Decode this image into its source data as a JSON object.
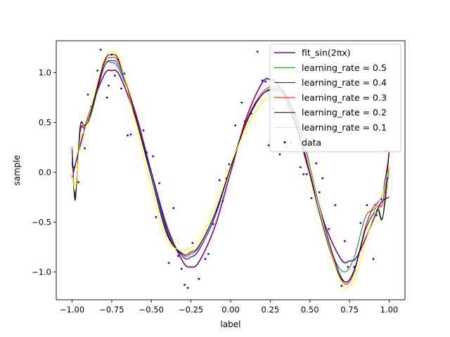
{
  "chart_data": {
    "type": "line",
    "title": "",
    "xlabel": "label",
    "ylabel": "sample",
    "xlim": [
      -1.1,
      1.1
    ],
    "ylim": [
      -1.28,
      1.32
    ],
    "xticks": [
      -1.0,
      -0.75,
      -0.5,
      -0.25,
      0.0,
      0.25,
      0.5,
      0.75,
      1.0
    ],
    "xtick_labels": [
      "−1.00",
      "−0.75",
      "−0.50",
      "−0.25",
      "0.00",
      "0.25",
      "0.50",
      "0.75",
      "1.00"
    ],
    "yticks": [
      -1.0,
      -0.5,
      0.0,
      0.5,
      1.0
    ],
    "ytick_labels": [
      "−1.0",
      "−0.5",
      "0.0",
      "0.5",
      "1.0"
    ],
    "grid": false,
    "legend_position": "top-right",
    "series": [
      {
        "name": "fit_sin(2πx)",
        "color": "#800080",
        "width": 1.6,
        "x": [
          -1.0,
          -0.9,
          -0.8,
          -0.75,
          -0.7,
          -0.6,
          -0.5,
          -0.4,
          -0.3,
          -0.25,
          -0.2,
          -0.1,
          0.0,
          0.1,
          0.2,
          0.25,
          0.3,
          0.4,
          0.5,
          0.6,
          0.7,
          0.75,
          0.8,
          0.9,
          0.95,
          1.0
        ],
        "y": [
          -0.05,
          0.55,
          0.97,
          1.02,
          0.97,
          0.55,
          0.0,
          -0.55,
          -0.9,
          -0.95,
          -0.9,
          -0.55,
          0.0,
          0.55,
          0.9,
          0.93,
          0.88,
          0.52,
          -0.02,
          -0.55,
          -0.88,
          -0.89,
          -0.84,
          -0.48,
          -0.3,
          -0.25
        ]
      },
      {
        "name": "learning_rate = 0.5",
        "color": "#008000",
        "width": 1.0,
        "x": [
          -1.0,
          -0.98,
          -0.95,
          -0.92,
          -0.88,
          -0.8,
          -0.75,
          -0.7,
          -0.6,
          -0.5,
          -0.4,
          -0.3,
          -0.25,
          -0.2,
          -0.1,
          0.0,
          0.1,
          0.2,
          0.28,
          0.35,
          0.45,
          0.55,
          0.65,
          0.72,
          0.78,
          0.85,
          0.9,
          0.93,
          0.96,
          1.0
        ],
        "y": [
          0.15,
          -0.22,
          0.4,
          0.45,
          0.58,
          1.05,
          1.1,
          1.02,
          0.6,
          0.0,
          -0.58,
          -0.85,
          -0.85,
          -0.78,
          -0.45,
          0.05,
          0.5,
          0.78,
          0.82,
          0.75,
          0.35,
          -0.3,
          -0.85,
          -1.0,
          -0.85,
          -0.45,
          -0.38,
          -0.35,
          -0.45,
          0.05
        ]
      },
      {
        "name": "learning_rate = 0.4",
        "color": "#0000ff",
        "width": 1.0,
        "x": [
          -1.0,
          -0.98,
          -0.95,
          -0.92,
          -0.88,
          -0.8,
          -0.75,
          -0.7,
          -0.6,
          -0.5,
          -0.4,
          -0.3,
          -0.25,
          -0.2,
          -0.1,
          0.0,
          0.1,
          0.2,
          0.28,
          0.35,
          0.45,
          0.55,
          0.65,
          0.72,
          0.78,
          0.85,
          0.9,
          0.93,
          0.96,
          1.0
        ],
        "y": [
          0.1,
          -0.25,
          0.4,
          0.45,
          0.6,
          1.05,
          1.12,
          1.05,
          0.6,
          0.0,
          -0.6,
          -0.85,
          -0.85,
          -0.78,
          -0.45,
          0.05,
          0.52,
          0.78,
          0.84,
          0.77,
          0.38,
          -0.28,
          -0.85,
          -1.1,
          -0.98,
          -0.55,
          -0.35,
          -0.3,
          -0.2,
          0.18
        ]
      },
      {
        "name": "learning_rate = 0.3",
        "color": "#ff0000",
        "width": 1.0,
        "x": [
          -1.0,
          -0.98,
          -0.95,
          -0.92,
          -0.88,
          -0.8,
          -0.75,
          -0.7,
          -0.6,
          -0.5,
          -0.4,
          -0.3,
          -0.25,
          -0.2,
          -0.1,
          0.0,
          0.1,
          0.2,
          0.28,
          0.35,
          0.45,
          0.55,
          0.65,
          0.72,
          0.78,
          0.85,
          0.9,
          0.93,
          0.96,
          1.0
        ],
        "y": [
          0.25,
          -0.25,
          0.42,
          0.45,
          0.6,
          1.08,
          1.15,
          1.08,
          0.58,
          -0.05,
          -0.62,
          -0.83,
          -0.82,
          -0.75,
          -0.42,
          0.05,
          0.52,
          0.8,
          0.86,
          0.78,
          0.35,
          -0.3,
          -0.88,
          -1.12,
          -1.0,
          -0.55,
          -0.35,
          -0.33,
          -0.3,
          0.22
        ]
      },
      {
        "name": "learning_rate = 0.2",
        "color": "#000000",
        "width": 1.0,
        "x": [
          -1.0,
          -0.98,
          -0.95,
          -0.92,
          -0.88,
          -0.8,
          -0.75,
          -0.7,
          -0.6,
          -0.5,
          -0.4,
          -0.3,
          -0.25,
          -0.2,
          -0.1,
          0.0,
          0.1,
          0.2,
          0.28,
          0.35,
          0.45,
          0.55,
          0.65,
          0.72,
          0.78,
          0.85,
          0.9,
          0.93,
          0.96,
          1.0
        ],
        "y": [
          0.22,
          -0.28,
          0.45,
          0.47,
          0.62,
          1.1,
          1.18,
          1.1,
          0.55,
          -0.05,
          -0.63,
          -0.82,
          -0.8,
          -0.74,
          -0.42,
          0.05,
          0.5,
          0.78,
          0.82,
          0.75,
          0.3,
          -0.35,
          -0.9,
          -1.1,
          -0.98,
          -0.58,
          -0.42,
          -0.38,
          -0.45,
          0.2
        ]
      },
      {
        "name": "learning_rate = 0.1",
        "color": "#ffff00",
        "width": 1.0,
        "x": [
          -1.0,
          -0.98,
          -0.95,
          -0.92,
          -0.88,
          -0.8,
          -0.75,
          -0.7,
          -0.6,
          -0.5,
          -0.4,
          -0.3,
          -0.25,
          -0.2,
          -0.1,
          0.0,
          0.1,
          0.2,
          0.28,
          0.35,
          0.45,
          0.55,
          0.65,
          0.72,
          0.78,
          0.85,
          0.9,
          0.93,
          0.96,
          1.0
        ],
        "y": [
          0.05,
          -0.18,
          0.32,
          0.42,
          0.65,
          1.12,
          1.2,
          1.12,
          0.5,
          -0.15,
          -0.68,
          -0.78,
          -0.75,
          -0.68,
          -0.35,
          0.08,
          0.45,
          0.7,
          0.77,
          0.72,
          0.35,
          -0.3,
          -0.9,
          -1.15,
          -1.08,
          -0.7,
          -0.45,
          -0.32,
          -0.2,
          0.05
        ]
      },
      {
        "name": "data",
        "color": "#0000ff",
        "kind": "scatter",
        "x": [
          -0.99,
          -0.96,
          -0.94,
          -0.92,
          -0.9,
          -0.88,
          -0.84,
          -0.82,
          -0.78,
          -0.77,
          -0.75,
          -0.73,
          -0.71,
          -0.69,
          -0.67,
          -0.65,
          -0.63,
          -0.55,
          -0.53,
          -0.49,
          -0.47,
          -0.45,
          -0.41,
          -0.39,
          -0.36,
          -0.33,
          -0.31,
          -0.29,
          -0.27,
          -0.24,
          -0.2,
          -0.16,
          -0.14,
          -0.11,
          -0.07,
          -0.05,
          -0.03,
          -0.01,
          0.03,
          0.07,
          0.09,
          0.13,
          0.17,
          0.2,
          0.22,
          0.24,
          0.27,
          0.31,
          0.35,
          0.38,
          0.42,
          0.44,
          0.46,
          0.48,
          0.51,
          0.54,
          0.56,
          0.58,
          0.62,
          0.66,
          0.7,
          0.72,
          0.74,
          0.78,
          0.82,
          0.86,
          0.9,
          0.92,
          0.95,
          0.98,
          0.99
        ],
        "y": [
          0.05,
          -0.1,
          0.5,
          0.24,
          0.78,
          0.66,
          1.02,
          1.23,
          0.75,
          0.87,
          1.18,
          0.97,
          1.13,
          0.84,
          0.99,
          0.37,
          0.38,
          0.42,
          0.2,
          0.16,
          -0.45,
          -0.11,
          -0.52,
          -0.91,
          -0.36,
          -0.84,
          -0.97,
          -1.13,
          -1.16,
          -0.71,
          -1.07,
          -0.87,
          -0.82,
          -0.52,
          -0.08,
          -0.29,
          -0.06,
          0.08,
          0.47,
          0.7,
          0.51,
          0.59,
          1.21,
          0.92,
          0.91,
          0.27,
          0.64,
          0.18,
          0.25,
          0.3,
          0.45,
          0.05,
          -0.02,
          -0.02,
          -0.26,
          0.09,
          -0.2,
          -0.06,
          -0.57,
          -0.33,
          -1.14,
          -0.69,
          -0.95,
          -0.95,
          -0.51,
          -0.33,
          -0.87,
          -0.43,
          -0.27,
          0.22,
          -0.06
        ]
      }
    ]
  }
}
